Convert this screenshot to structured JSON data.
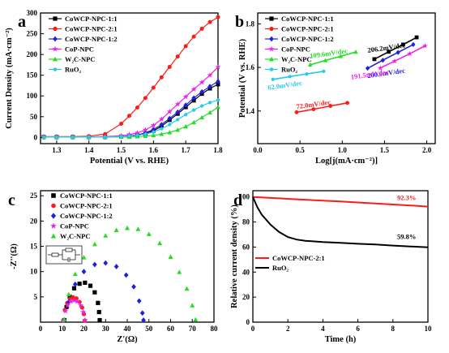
{
  "colors": {
    "black": "#000000",
    "red": "#ff1a1a",
    "blue": "#1f1fe0",
    "magenta": "#ee22ee",
    "green": "#22dd22",
    "cyan": "#22ccee"
  },
  "chart_data": [
    {
      "id": "a",
      "panel_label": "a",
      "type": "line",
      "title": "",
      "xlabel": "Potential (V vs. RHE)",
      "ylabel": "Current Density (mA·cm⁻²)",
      "xlim": [
        1.25,
        1.8
      ],
      "ylim": [
        -15,
        300
      ],
      "xticks": [
        1.3,
        1.4,
        1.5,
        1.6,
        1.7,
        1.8
      ],
      "yticks": [
        0,
        50,
        100,
        150,
        200,
        250,
        300
      ],
      "xtick_labels": [
        "1.3",
        "1.4",
        "1.5",
        "1.6",
        "1.7",
        "1.8"
      ],
      "ytick_labels": [
        "0",
        "50",
        "100",
        "150",
        "200",
        "250",
        "300"
      ],
      "legend_position": "top-left",
      "x": [
        1.26,
        1.3,
        1.35,
        1.4,
        1.45,
        1.5,
        1.525,
        1.55,
        1.575,
        1.6,
        1.625,
        1.65,
        1.675,
        1.7,
        1.725,
        1.75,
        1.775,
        1.8
      ],
      "series": [
        {
          "name": "CoWCP-NPC-1:1",
          "color": "#000000",
          "marker": "square",
          "values": [
            1,
            1,
            1,
            1,
            1,
            2,
            3,
            5,
            9,
            16,
            27,
            42,
            57,
            73,
            89,
            105,
            118,
            128
          ]
        },
        {
          "name": "CoWCP-NPC-2:1",
          "color": "#ff1a1a",
          "marker": "circle",
          "values": [
            2,
            2,
            2,
            3,
            8,
            33,
            52,
            72,
            95,
            120,
            145,
            170,
            195,
            220,
            243,
            262,
            278,
            290
          ]
        },
        {
          "name": "CoWCP-NPC-1:2",
          "color": "#1f1fe0",
          "marker": "diamond",
          "values": [
            1,
            1,
            1,
            1,
            1,
            2,
            4,
            6,
            11,
            19,
            31,
            46,
            61,
            78,
            95,
            110,
            123,
            135
          ]
        },
        {
          "name": "CoP-NPC",
          "color": "#ee22ee",
          "marker": "star",
          "values": [
            1,
            1,
            1,
            1,
            2,
            4,
            7,
            11,
            18,
            29,
            44,
            62,
            80,
            98,
            116,
            133,
            150,
            170
          ]
        },
        {
          "name": "W₂C-NPC",
          "color": "#22dd22",
          "marker": "triangle",
          "values": [
            1,
            1,
            1,
            1,
            1,
            1,
            1,
            2,
            3,
            5,
            8,
            12,
            18,
            26,
            36,
            48,
            60,
            73
          ]
        },
        {
          "name": "RuO₂",
          "color": "#22ccee",
          "marker": "circle-sm",
          "values": [
            1,
            1,
            1,
            1,
            1,
            2,
            3,
            5,
            8,
            13,
            21,
            31,
            43,
            55,
            66,
            76,
            84,
            90
          ]
        }
      ]
    },
    {
      "id": "b",
      "panel_label": "b",
      "type": "line",
      "title": "",
      "xlabel": "Log[j(mA·cm⁻²)]",
      "ylabel": "Potential (V vs. RHE)",
      "xlim": [
        0,
        2.1
      ],
      "ylim": [
        1.25,
        1.85
      ],
      "xticks": [
        0.0,
        0.5,
        1.0,
        1.5,
        2.0
      ],
      "yticks": [
        1.4,
        1.6,
        1.8
      ],
      "xtick_labels": [
        "0.0",
        "0.5",
        "1.0",
        "1.5",
        "2.0"
      ],
      "ytick_labels": [
        "1.4",
        "1.6",
        "1.8"
      ],
      "legend_position": "top-left",
      "series": [
        {
          "name": "CoWCP-NPC-1:1",
          "color": "#000000",
          "marker": "square",
          "x": [
            1.38,
            1.55,
            1.72,
            1.88
          ],
          "values": [
            1.638,
            1.672,
            1.705,
            1.738
          ],
          "annotation": "206.2mV/dec"
        },
        {
          "name": "CoWCP-NPC-2:1",
          "color": "#ff1a1a",
          "marker": "circle",
          "x": [
            0.46,
            0.66,
            0.86,
            1.06
          ],
          "values": [
            1.394,
            1.408,
            1.423,
            1.437
          ],
          "annotation": "72.0mV/dec"
        },
        {
          "name": "CoWCP-NPC-1:2",
          "color": "#1f1fe0",
          "marker": "diamond",
          "x": [
            1.3,
            1.48,
            1.66,
            1.84
          ],
          "values": [
            1.596,
            1.633,
            1.669,
            1.705
          ],
          "annotation": "200.9mV/dec"
        },
        {
          "name": "CoP-NPC",
          "color": "#ee22ee",
          "marker": "star",
          "x": [
            1.45,
            1.62,
            1.8,
            1.98
          ],
          "values": [
            1.597,
            1.629,
            1.663,
            1.699
          ],
          "annotation": "191.5mV/dec"
        },
        {
          "name": "W₂C-NPC",
          "color": "#22dd22",
          "marker": "triangle",
          "x": [
            0.62,
            0.8,
            0.98,
            1.16
          ],
          "values": [
            1.612,
            1.632,
            1.651,
            1.671
          ],
          "annotation": "109.6mV/dec"
        },
        {
          "name": "RuO₂",
          "color": "#22ccee",
          "marker": "circle-sm",
          "x": [
            0.18,
            0.38,
            0.58,
            0.78
          ],
          "values": [
            1.545,
            1.558,
            1.57,
            1.582
          ],
          "annotation": "62.0mV/dec"
        }
      ]
    },
    {
      "id": "c",
      "panel_label": "c",
      "type": "scatter",
      "title": "",
      "xlabel": "Z'(Ω)",
      "ylabel": "-Z''(Ω)",
      "xlim": [
        0,
        80
      ],
      "ylim": [
        0,
        26
      ],
      "xticks": [
        0,
        10,
        20,
        30,
        40,
        50,
        60,
        70,
        80
      ],
      "yticks": [
        5,
        10,
        15,
        20,
        25
      ],
      "xtick_labels": [
        "0",
        "10",
        "20",
        "30",
        "40",
        "50",
        "60",
        "70",
        "80"
      ],
      "ytick_labels": [
        "5",
        "10",
        "15",
        "20",
        "25"
      ],
      "legend_position": "top-left",
      "inset": "equivalent-circuit",
      "series": [
        {
          "name": "CoWCP-NPC-1:1",
          "color": "#000000",
          "marker": "square",
          "x": [
            11,
            12,
            13.5,
            15.5,
            18,
            20.5,
            23,
            25,
            26.5,
            27,
            27.3
          ],
          "values": [
            0.4,
            3,
            5,
            6.7,
            7.6,
            7.8,
            7.2,
            5.9,
            3.8,
            2,
            0.4
          ]
        },
        {
          "name": "CoWCP-NPC-2:1",
          "color": "#ff1a1a",
          "marker": "circle",
          "x": [
            10.5,
            11.2,
            12.3,
            13.6,
            15,
            16.6,
            18,
            19.2,
            20,
            20.4
          ],
          "values": [
            0.3,
            2.4,
            3.8,
            4.6,
            4.9,
            4.7,
            4,
            2.9,
            1.6,
            0.3
          ]
        },
        {
          "name": "CoWCP-NPC-1:2",
          "color": "#1f1fe0",
          "marker": "diamond",
          "x": [
            11,
            13,
            16,
            20,
            25,
            30,
            35,
            39.5,
            43,
            45.5,
            47,
            47.5
          ],
          "values": [
            0.4,
            4,
            7.5,
            10,
            11.4,
            11.7,
            11,
            9.3,
            7,
            4.2,
            1.8,
            0.4
          ]
        },
        {
          "name": "CoP-NPC",
          "color": "#ee22ee",
          "marker": "star",
          "x": [
            10.5,
            11.5,
            12.5,
            14,
            15.5,
            17,
            18.5,
            19.7,
            20.5
          ],
          "values": [
            0.3,
            2.2,
            3.3,
            4.1,
            4.3,
            4.1,
            3.3,
            2,
            0.4
          ]
        },
        {
          "name": "W₂C-NPC",
          "color": "#22dd22",
          "marker": "triangle",
          "x": [
            11,
            13,
            16,
            20,
            25,
            30,
            35,
            40,
            45,
            50,
            55,
            60,
            64,
            67.5,
            70,
            71.5
          ],
          "values": [
            0.5,
            5.5,
            9.5,
            12.8,
            15.4,
            17.1,
            18.2,
            18.6,
            18.4,
            17.4,
            15.6,
            12.9,
            9.9,
            6.6,
            3.3,
            0.5
          ]
        }
      ]
    },
    {
      "id": "d",
      "panel_label": "d",
      "type": "line",
      "title": "",
      "xlabel": "Time (h)",
      "ylabel": "Relative current density (%)",
      "xlim": [
        0,
        10
      ],
      "ylim": [
        0,
        105
      ],
      "xticks": [
        0,
        2,
        4,
        6,
        8,
        10
      ],
      "yticks": [
        0,
        20,
        40,
        60,
        80,
        100
      ],
      "xtick_labels": [
        "0",
        "2",
        "4",
        "6",
        "8",
        "10"
      ],
      "ytick_labels": [
        "0",
        "20",
        "40",
        "60",
        "80",
        "100"
      ],
      "legend_position": "bottom-left",
      "x": [
        0,
        0.25,
        0.5,
        1,
        1.5,
        2,
        2.5,
        3,
        4,
        5,
        6,
        7,
        8,
        9,
        10
      ],
      "series": [
        {
          "name": "CoWCP-NPC-2:1",
          "color": "#ff1a1a",
          "label": "92.3%",
          "values": [
            100,
            99.8,
            99.6,
            99.2,
            98.9,
            98.5,
            98.1,
            97.8,
            97.1,
            96.4,
            95.6,
            94.8,
            94.0,
            93.2,
            92.3
          ]
        },
        {
          "name": "RuO₂",
          "color": "#000000",
          "label": "59.8%",
          "values": [
            100,
            92,
            86,
            78,
            72,
            68,
            66,
            65,
            64,
            63.3,
            62.6,
            62,
            61.2,
            60.5,
            59.8
          ]
        }
      ]
    }
  ]
}
